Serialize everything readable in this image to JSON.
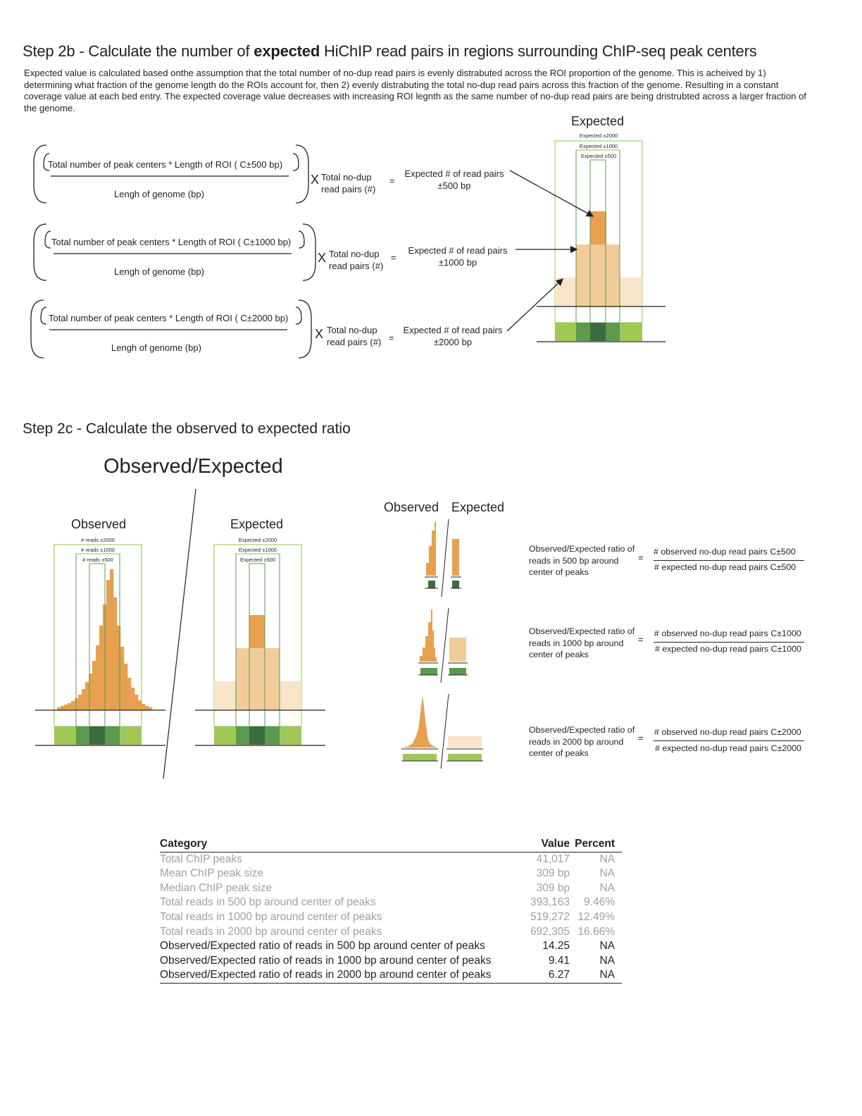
{
  "step2b": {
    "title_pre": "Step 2b - Calculate the number of ",
    "title_bold": "expected",
    "title_post": " HiChIP read pairs in regions surrounding ChIP-seq peak centers",
    "intro": "Expected value is calculated based onthe assumption that the total number of no-dup read pairs is evenly distrabuted across the ROI proportion of the genome. This is acheived by 1) determining what fraction of the genome length do the ROIs account for, then 2) evenly distrabuting the total no-dup read pairs across this fraction of the genome. Resulting in a constant coverage value at each bed entry. The expected coverage value decreases with increasing ROI legnth as the same number of no-dup read pairs are being dristrubted across a larger fraction of the genome.",
    "formulas": [
      {
        "numerator": "Total number of peak centers * Length of ROI ( C±500 bp)",
        "denominator": "Lengh of genome (bp)",
        "times": "X",
        "total_line1": "Total no-dup",
        "total_line2": "read pairs (#)",
        "equals": "=",
        "result_line1": "Expected # of read pairs",
        "result_line2": "±500 bp"
      },
      {
        "numerator": "Total number of peak centers * Length of ROI ( C±1000 bp)",
        "denominator": "Lengh of genome (bp)",
        "times": "X",
        "total_line1": "Total no-dup",
        "total_line2": "read pairs (#)",
        "equals": "=",
        "result_line1": "Expected # of read pairs",
        "result_line2": "±1000 bp"
      },
      {
        "numerator": "Total number of peak centers * Length of ROI ( C±2000 bp)",
        "denominator": "Lengh of genome (bp)",
        "times": "X",
        "total_line1": "Total no-dup",
        "total_line2": "read pairs (#)",
        "equals": "=",
        "result_line1": "Expected # of read pairs",
        "result_line2": "±2000 bp"
      }
    ],
    "diagram": {
      "label": "Expected",
      "windows": [
        "Expected ±2000",
        "Expected ±1000",
        "Expected ±500"
      ]
    }
  },
  "step2c": {
    "title": "Step 2c - Calculate the observed to expected ratio",
    "subtitle": "Observed/Expected",
    "observed_label": "Observed",
    "observed_windows": [
      "# reads ±2000",
      "# reads ±1000",
      "# reads ±500"
    ],
    "expected_label": "Expected",
    "expected_windows": [
      "Expected ±2000",
      "Expected ±1000",
      "Expected ±500"
    ],
    "mini_observed": "Observed",
    "mini_expected": "Expected",
    "ratios": [
      {
        "desc_line1": "Observed/Expected ratio of",
        "desc_line2": "reads in 500 bp around",
        "desc_line3": "center of peaks",
        "equals": "=",
        "numerator": "# observed no-dup read pairs C±500",
        "denominator": "# expected no-dup read pairs C±500"
      },
      {
        "desc_line1": "Observed/Expected ratio of",
        "desc_line2": "reads in 1000 bp around",
        "desc_line3": "center of peaks",
        "equals": "=",
        "numerator": "# observed no-dup read pairs C±1000",
        "denominator": "# expected no-dup read pairs C±1000"
      },
      {
        "desc_line1": "Observed/Expected ratio of",
        "desc_line2": "reads in 2000 bp around",
        "desc_line3": "center of peaks",
        "equals": "=",
        "numerator": "# observed no-dup read pairs C±2000",
        "denominator": "# expected no-dup read pairs C±2000"
      }
    ]
  },
  "table": {
    "headers": [
      "Category",
      "Value",
      "Percent"
    ],
    "rows": [
      {
        "category": "Total ChIP peaks",
        "value": "41,017",
        "percent": "NA"
      },
      {
        "category": "Mean ChIP peak size",
        "value": "309 bp",
        "percent": "NA"
      },
      {
        "category": "Median ChIP peak size",
        "value": "309 bp",
        "percent": "NA"
      },
      {
        "category": "Total reads in 500 bp around center of peaks",
        "value": "393,163",
        "percent": "9.46%"
      },
      {
        "category": "Total reads in 1000 bp around center of peaks",
        "value": "519,272",
        "percent": "12.49%"
      },
      {
        "category": "Total reads in 2000 bp around center of peaks",
        "value": "692,305",
        "percent": "16.66%"
      },
      {
        "category": "Observed/Expected ratio of reads in 500 bp around center of peaks",
        "value": "14.25",
        "percent": "NA"
      },
      {
        "category": "Observed/Expected ratio of reads in 1000 bp around center of peaks",
        "value": "9.41",
        "percent": "NA"
      },
      {
        "category": "Observed/Expected ratio of reads in 2000 bp around center of peaks",
        "value": "6.27",
        "percent": "NA"
      }
    ]
  },
  "colors": {
    "orange": "#e6a04f",
    "orange_mid": "#f1cc9a",
    "orange_light": "#f7e4c9",
    "green_light": "#9fc856",
    "green_mid": "#5c9a4f",
    "green_dark": "#3d6b40",
    "window_green": "#8dc63f"
  }
}
